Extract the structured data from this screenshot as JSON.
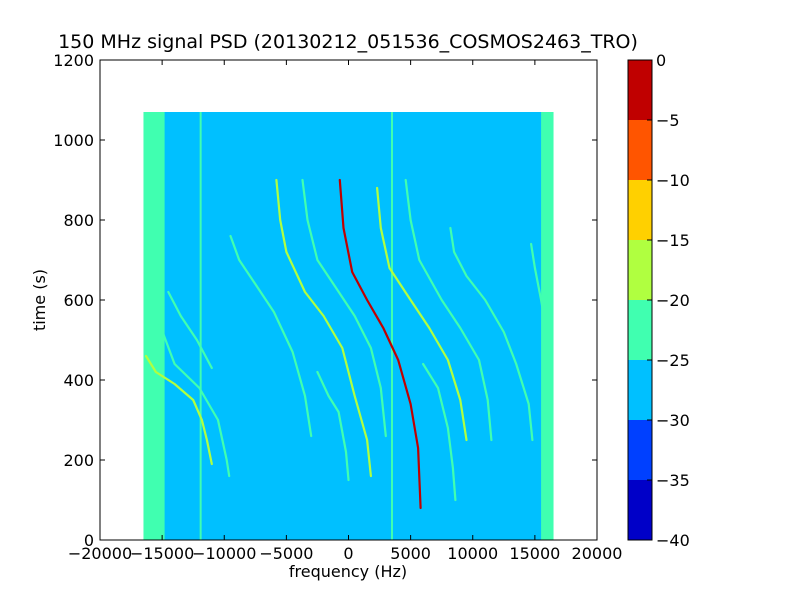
{
  "chart_data": {
    "type": "heatmap",
    "title": "150 MHz signal PSD (20130212_051536_COSMOS2463_TRO)",
    "xlabel": "frequency (Hz)",
    "ylabel": "time (s)",
    "xlim": [
      -20000,
      20000
    ],
    "ylim": [
      0,
      1200
    ],
    "x_ticks": [
      -20000,
      -15000,
      -10000,
      -5000,
      0,
      5000,
      10000,
      15000,
      20000
    ],
    "x_tick_labels": [
      "−20000",
      "−15000",
      "−10000",
      "−5000",
      "0",
      "5000",
      "10000",
      "15000",
      "20000"
    ],
    "y_ticks": [
      0,
      200,
      400,
      600,
      800,
      1000,
      1200
    ],
    "y_tick_labels": [
      "0",
      "200",
      "400",
      "600",
      "800",
      "1000",
      "1200"
    ],
    "data_extent": {
      "x": [
        -16500,
        16500
      ],
      "y": [
        0,
        1070
      ]
    },
    "background_level": -27.5,
    "edge_bands": [
      {
        "x": [
          -16500,
          -14800
        ],
        "level": -22.5
      },
      {
        "x": [
          15500,
          16500
        ],
        "level": -22.5
      }
    ],
    "vertical_lines": [
      {
        "x": -11900,
        "level": -22.5
      },
      {
        "x": 3500,
        "level": -22.5
      }
    ],
    "traces": [
      {
        "level": -2.5,
        "points": [
          [
            -700,
            900
          ],
          [
            -400,
            780
          ],
          [
            300,
            670
          ],
          [
            1500,
            600
          ],
          [
            2800,
            530
          ],
          [
            4000,
            450
          ],
          [
            5000,
            340
          ],
          [
            5600,
            230
          ],
          [
            5800,
            80
          ]
        ]
      },
      {
        "level": -17.5,
        "points": [
          [
            -16300,
            460
          ],
          [
            -15500,
            420
          ],
          [
            -14000,
            390
          ],
          [
            -12500,
            350
          ],
          [
            -11800,
            300
          ],
          [
            -11400,
            250
          ],
          [
            -11000,
            190
          ]
        ]
      },
      {
        "level": -22.5,
        "points": [
          [
            -15800,
            580
          ],
          [
            -15200,
            540
          ],
          [
            -14000,
            440
          ],
          [
            -12000,
            380
          ],
          [
            -10500,
            300
          ],
          [
            -9800,
            200
          ],
          [
            -9600,
            160
          ]
        ]
      },
      {
        "level": -17.5,
        "points": [
          [
            -5800,
            900
          ],
          [
            -5500,
            800
          ],
          [
            -5000,
            720
          ],
          [
            -3500,
            620
          ],
          [
            -2000,
            560
          ],
          [
            -500,
            480
          ],
          [
            500,
            360
          ],
          [
            1500,
            250
          ],
          [
            1800,
            160
          ]
        ]
      },
      {
        "level": -22.5,
        "points": [
          [
            -3700,
            900
          ],
          [
            -3300,
            800
          ],
          [
            -2500,
            700
          ],
          [
            -1000,
            630
          ],
          [
            500,
            560
          ],
          [
            1800,
            480
          ],
          [
            2600,
            380
          ],
          [
            3000,
            260
          ]
        ]
      },
      {
        "level": -17.5,
        "points": [
          [
            2300,
            880
          ],
          [
            2600,
            780
          ],
          [
            3300,
            680
          ],
          [
            5000,
            600
          ],
          [
            6500,
            530
          ],
          [
            8000,
            450
          ],
          [
            9000,
            350
          ],
          [
            9500,
            250
          ]
        ]
      },
      {
        "level": -22.5,
        "points": [
          [
            4600,
            900
          ],
          [
            5000,
            800
          ],
          [
            5700,
            700
          ],
          [
            7500,
            600
          ],
          [
            9000,
            530
          ],
          [
            10500,
            450
          ],
          [
            11200,
            350
          ],
          [
            11500,
            250
          ]
        ]
      },
      {
        "level": -22.5,
        "points": [
          [
            8200,
            780
          ],
          [
            8500,
            720
          ],
          [
            9500,
            660
          ],
          [
            11000,
            600
          ],
          [
            12500,
            520
          ],
          [
            13500,
            440
          ],
          [
            14500,
            340
          ],
          [
            14800,
            250
          ]
        ]
      },
      {
        "level": -22.5,
        "points": [
          [
            14700,
            740
          ],
          [
            15000,
            680
          ],
          [
            15500,
            600
          ],
          [
            16200,
            470
          ]
        ]
      },
      {
        "level": -22.5,
        "points": [
          [
            -9500,
            760
          ],
          [
            -8800,
            700
          ],
          [
            -7500,
            640
          ],
          [
            -6000,
            570
          ],
          [
            -4500,
            470
          ],
          [
            -3500,
            360
          ],
          [
            -3000,
            260
          ]
        ]
      },
      {
        "level": -22.5,
        "points": [
          [
            -14500,
            620
          ],
          [
            -13500,
            560
          ],
          [
            -12200,
            500
          ],
          [
            -11000,
            430
          ]
        ]
      },
      {
        "level": -22.5,
        "points": [
          [
            -2500,
            420
          ],
          [
            -1600,
            360
          ],
          [
            -800,
            320
          ],
          [
            -200,
            220
          ],
          [
            0,
            150
          ]
        ]
      },
      {
        "level": -22.5,
        "points": [
          [
            6000,
            440
          ],
          [
            7200,
            380
          ],
          [
            8000,
            280
          ],
          [
            8400,
            180
          ],
          [
            8600,
            100
          ]
        ]
      }
    ],
    "colorbar": {
      "levels": [
        -40,
        -35,
        -30,
        -25,
        -20,
        -15,
        -10,
        -5,
        0
      ],
      "tick_labels": [
        "−40",
        "−35",
        "−30",
        "−25",
        "−20",
        "−15",
        "−10",
        "−5",
        "0"
      ],
      "colors": [
        "#0000c8",
        "#0040ff",
        "#00c0ff",
        "#40ffb0",
        "#b0ff40",
        "#ffd000",
        "#ff5500",
        "#c00000"
      ]
    }
  }
}
